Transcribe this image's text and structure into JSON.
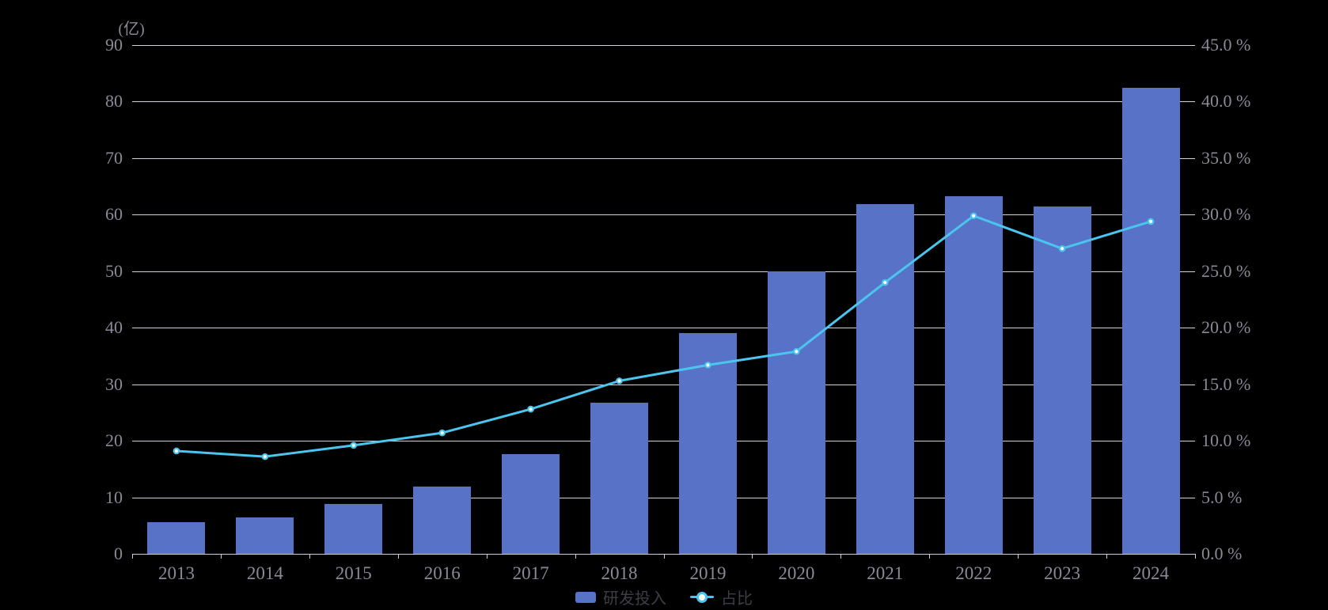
{
  "chart_data": {
    "type": "bar",
    "subtype": "dual-axis bar + line",
    "title": "",
    "categories": [
      "2013",
      "2014",
      "2015",
      "2016",
      "2017",
      "2018",
      "2019",
      "2020",
      "2021",
      "2022",
      "2023",
      "2024"
    ],
    "series": [
      {
        "name": "研发投入",
        "type": "bar",
        "axis": "left",
        "unit": "亿",
        "color": "#5872c8",
        "values": [
          5.6,
          6.5,
          8.8,
          11.9,
          17.7,
          26.8,
          39.0,
          50.0,
          61.8,
          63.2,
          61.4,
          82.4
        ]
      },
      {
        "name": "占比",
        "type": "line",
        "axis": "right",
        "unit": "%",
        "color": "#4ac6ee",
        "marker_fill": "#ffffff",
        "values": [
          9.1,
          8.6,
          9.6,
          10.7,
          12.8,
          15.3,
          16.7,
          17.9,
          24.0,
          29.9,
          27.0,
          29.4
        ]
      }
    ],
    "left_axis": {
      "title": "(亿)",
      "min": 0,
      "max": 90,
      "step": 10,
      "tick_labels": [
        "0",
        "10",
        "20",
        "30",
        "40",
        "50",
        "60",
        "70",
        "80",
        "90"
      ]
    },
    "right_axis": {
      "title": "",
      "min": 0,
      "max": 45,
      "step": 5,
      "tick_labels": [
        "0.0 %",
        "5.0 %",
        "10.0 %",
        "15.0 %",
        "20.0 %",
        "25.0 %",
        "30.0 %",
        "35.0 %",
        "40.0 %",
        "45.0 %"
      ]
    },
    "grid": true,
    "legend_position": "bottom-center",
    "background_color": "#000000",
    "axis_text_color": "#8a8a97",
    "legend_text_color": "#3e3e46",
    "gridline_color": "#e2e4ef"
  },
  "legend": {
    "items": [
      {
        "label": "研发投入",
        "marker": "bar-swatch"
      },
      {
        "label": "占比",
        "marker": "line-dot"
      }
    ]
  }
}
